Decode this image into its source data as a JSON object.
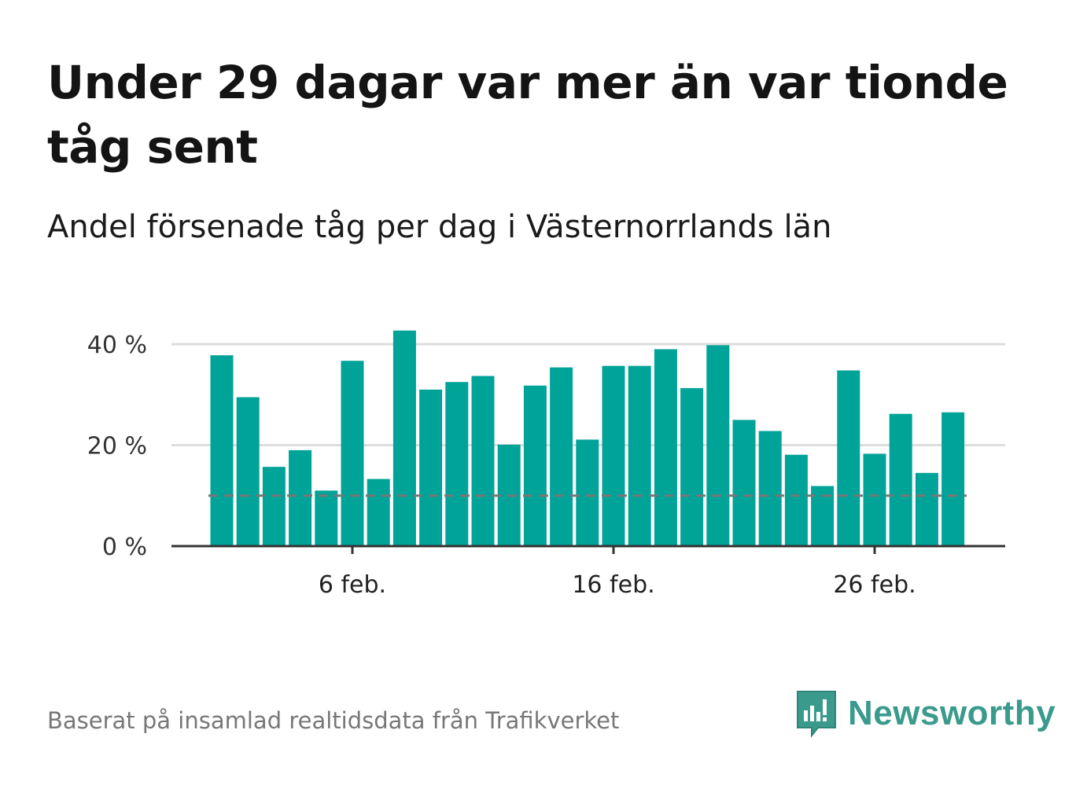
{
  "title": "Under 29 dagar var mer än var tionde tåg sent",
  "subtitle": "Andel försenade tåg per dag i Västernorrlands län",
  "footer": "Baserat på insamlad realtidsdata från Trafikverket",
  "logo_text": "Newsworthy",
  "colors": {
    "bar": "#00a398",
    "grid": "#dddddd",
    "axis": "#333333",
    "reference": "#777777",
    "logo": "#3a9a8c"
  },
  "chart_data": {
    "type": "bar",
    "x_unit": "day of February",
    "x": [
      1,
      2,
      3,
      4,
      5,
      6,
      7,
      8,
      9,
      10,
      11,
      12,
      13,
      14,
      15,
      16,
      17,
      18,
      19,
      20,
      21,
      22,
      23,
      24,
      25,
      26,
      27,
      28,
      29
    ],
    "values": [
      37.8,
      29.5,
      15.7,
      19.0,
      11.0,
      36.7,
      13.3,
      42.7,
      31.0,
      32.5,
      33.7,
      20.1,
      31.8,
      35.4,
      21.1,
      35.7,
      35.7,
      39.0,
      31.3,
      39.8,
      25.0,
      22.8,
      18.1,
      11.9,
      34.8,
      18.3,
      26.2,
      14.5,
      26.5
    ],
    "reference_line": 10,
    "ylim": [
      0,
      40
    ],
    "yticks": [
      0,
      20,
      40
    ],
    "ytick_labels": [
      "0 %",
      "20 %",
      "40 %"
    ],
    "xticks": [
      6,
      16,
      26
    ],
    "xtick_labels": [
      "6 feb.",
      "16 feb.",
      "26 feb."
    ],
    "grid": true,
    "legend": "none"
  }
}
